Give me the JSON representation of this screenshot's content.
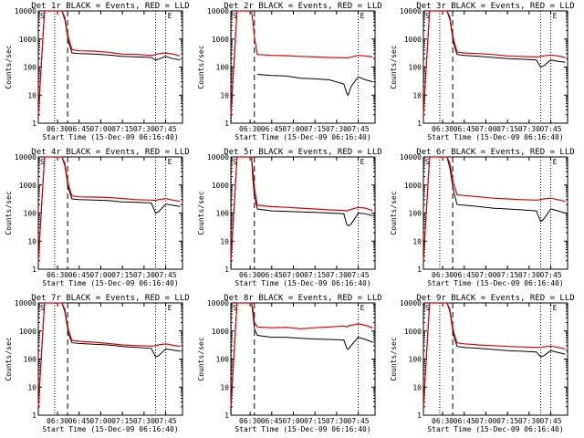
{
  "figure": {
    "ylabel": "Counts/sec",
    "xlabel": "Start Time (15-Dec-09 06:16:40)",
    "xticks": [
      "06:30",
      "06:45",
      "07:00",
      "07:15",
      "07:30",
      "07:45"
    ],
    "yticks": [
      "1",
      "10",
      "100",
      "1000",
      "10000"
    ],
    "colors": {
      "events": "#000000",
      "lld": "#e00000"
    }
  },
  "chart_data": [
    {
      "type": "line",
      "title": "Det 1r BLACK = Events, RED = LLD",
      "corner_labels": [
        "S",
        "E"
      ],
      "x": [
        "06:16:40",
        "06:21",
        "06:25",
        "06:29",
        "06:33",
        "06:35",
        "06:37",
        "06:38",
        "06:40",
        "06:45",
        "06:55",
        "07:05",
        "07:15",
        "07:25",
        "07:35",
        "07:38",
        "07:40",
        "07:45",
        "07:50",
        "07:55"
      ],
      "series": [
        {
          "name": "BLACK = Events",
          "values": [
            2,
            10000,
            10000,
            10000,
            10000,
            5000,
            1200,
            700,
            320,
            300,
            290,
            270,
            240,
            230,
            220,
            180,
            190,
            240,
            200,
            180
          ]
        },
        {
          "name": "RED = LLD",
          "values": [
            2,
            10000,
            10000,
            10000,
            10000,
            6000,
            1500,
            900,
            420,
            380,
            370,
            340,
            290,
            280,
            260,
            280,
            300,
            320,
            290,
            250
          ]
        }
      ],
      "markers": {
        "dotted": [
          "06:28",
          "07:38",
          "07:45"
        ],
        "dashed": [
          "06:37"
        ]
      },
      "ylim": [
        1,
        10000
      ],
      "yscale": "log"
    },
    {
      "type": "line",
      "title": "Det 2r BLACK = Events, RED = LLD",
      "corner_labels": [
        "S",
        "E"
      ],
      "x": [
        "06:16:40",
        "06:21",
        "06:25",
        "06:29",
        "06:31",
        "06:32",
        "06:33",
        "06:35",
        "06:45",
        "06:55",
        "07:05",
        "07:15",
        "07:25",
        "07:35",
        "07:37",
        "07:38",
        "07:40",
        "07:45",
        "07:50",
        "07:55"
      ],
      "series": [
        {
          "name": "BLACK = Events",
          "values": [
            2,
            10000,
            10000,
            10000,
            null,
            null,
            null,
            55,
            50,
            48,
            40,
            38,
            35,
            25,
            12,
            10,
            20,
            45,
            35,
            30
          ]
        },
        {
          "name": "RED = LLD",
          "values": [
            2,
            10000,
            10000,
            10000,
            10000,
            4000,
            1200,
            280,
            260,
            255,
            240,
            230,
            220,
            215,
            210,
            215,
            230,
            260,
            250,
            230
          ]
        }
      ],
      "markers": {
        "dotted": [
          "06:17",
          "07:45"
        ],
        "dashed": [
          "06:33"
        ]
      },
      "ylim": [
        1,
        10000
      ],
      "yscale": "log"
    },
    {
      "type": "line",
      "title": "Det 3r BLACK = Events, RED = LLD",
      "corner_labels": [
        "S",
        "E"
      ],
      "x": [
        "06:16:40",
        "06:21",
        "06:25",
        "06:29",
        "06:33",
        "06:35",
        "06:37",
        "06:38",
        "06:40",
        "06:45",
        "06:55",
        "07:05",
        "07:15",
        "07:25",
        "07:35",
        "07:38",
        "07:40",
        "07:45",
        "07:50",
        "07:55"
      ],
      "series": [
        {
          "name": "BLACK = Events",
          "values": [
            2,
            10000,
            10000,
            10000,
            10000,
            5000,
            1100,
            600,
            280,
            260,
            240,
            220,
            200,
            190,
            180,
            100,
            110,
            180,
            160,
            150
          ]
        },
        {
          "name": "RED = LLD",
          "values": [
            2,
            10000,
            10000,
            10000,
            10000,
            6000,
            1400,
            800,
            340,
            320,
            300,
            280,
            250,
            240,
            230,
            240,
            250,
            270,
            250,
            220
          ]
        }
      ],
      "markers": {
        "dotted": [
          "06:28",
          "07:38",
          "07:45"
        ],
        "dashed": [
          "06:37"
        ]
      },
      "ylim": [
        1,
        10000
      ],
      "yscale": "log"
    },
    {
      "type": "line",
      "title": "Det 4r BLACK = Events, RED = LLD",
      "corner_labels": [
        "S",
        "E"
      ],
      "x": [
        "06:16:40",
        "06:21",
        "06:25",
        "06:29",
        "06:33",
        "06:35",
        "06:37",
        "06:38",
        "06:40",
        "06:45",
        "06:55",
        "07:05",
        "07:15",
        "07:25",
        "07:35",
        "07:38",
        "07:40",
        "07:45",
        "07:50",
        "07:55"
      ],
      "series": [
        {
          "name": "BLACK = Events",
          "values": [
            2,
            10000,
            10000,
            10000,
            10000,
            5000,
            1100,
            650,
            320,
            300,
            290,
            280,
            250,
            240,
            230,
            100,
            110,
            210,
            190,
            170
          ]
        },
        {
          "name": "RED = LLD",
          "values": [
            2,
            10000,
            10000,
            10000,
            10000,
            6000,
            1400,
            850,
            410,
            380,
            370,
            360,
            330,
            300,
            290,
            280,
            300,
            330,
            290,
            260
          ]
        }
      ],
      "markers": {
        "dotted": [
          "06:28",
          "07:38",
          "07:45"
        ],
        "dashed": [
          "06:37"
        ]
      },
      "ylim": [
        1,
        10000
      ],
      "yscale": "log"
    },
    {
      "type": "line",
      "title": "Det 5r BLACK = Events, RED = LLD",
      "corner_labels": [
        "S",
        "E"
      ],
      "x": [
        "06:16:40",
        "06:21",
        "06:25",
        "06:29",
        "06:31",
        "06:32",
        "06:33",
        "06:35",
        "06:45",
        "06:55",
        "07:05",
        "07:15",
        "07:25",
        "07:35",
        "07:37",
        "07:38",
        "07:40",
        "07:45",
        "07:50",
        "07:55"
      ],
      "series": [
        {
          "name": "BLACK = Events",
          "values": [
            2,
            10000,
            10000,
            10000,
            10000,
            1500,
            400,
            140,
            120,
            115,
            110,
            105,
            100,
            95,
            40,
            35,
            40,
            100,
            95,
            80
          ]
        },
        {
          "name": "RED = LLD",
          "values": [
            2,
            10000,
            10000,
            10000,
            10000,
            3000,
            800,
            190,
            170,
            160,
            150,
            140,
            130,
            125,
            120,
            125,
            135,
            160,
            150,
            120
          ]
        }
      ],
      "markers": {
        "dotted": [
          "06:17",
          "07:45"
        ],
        "dashed": [
          "06:33"
        ]
      },
      "ylim": [
        1,
        10000
      ],
      "yscale": "log"
    },
    {
      "type": "line",
      "title": "Det 6r BLACK = Events, RED = LLD",
      "corner_labels": [
        "S",
        "E"
      ],
      "x": [
        "06:16:40",
        "06:21",
        "06:25",
        "06:29",
        "06:33",
        "06:35",
        "06:37",
        "06:38",
        "06:40",
        "06:45",
        "06:55",
        "07:05",
        "07:15",
        "07:25",
        "07:35",
        "07:38",
        "07:40",
        "07:45",
        "07:50",
        "07:55"
      ],
      "series": [
        {
          "name": "BLACK = Events",
          "values": [
            2,
            10000,
            10000,
            10000,
            10000,
            4000,
            900,
            500,
            200,
            190,
            170,
            150,
            140,
            130,
            120,
            50,
            60,
            140,
            120,
            100
          ]
        },
        {
          "name": "RED = LLD",
          "values": [
            2,
            10000,
            10000,
            10000,
            10000,
            6000,
            1600,
            1000,
            450,
            420,
            380,
            340,
            320,
            300,
            290,
            300,
            320,
            340,
            300,
            260
          ]
        }
      ],
      "markers": {
        "dotted": [
          "06:28",
          "07:38",
          "07:45"
        ],
        "dashed": [
          "06:37"
        ]
      },
      "ylim": [
        1,
        10000
      ],
      "yscale": "log"
    },
    {
      "type": "line",
      "title": "Det 7r BLACK = Events, RED = LLD",
      "corner_labels": [
        "S",
        "E"
      ],
      "x": [
        "06:16:40",
        "06:21",
        "06:25",
        "06:29",
        "06:33",
        "06:35",
        "06:37",
        "06:38",
        "06:40",
        "06:45",
        "06:55",
        "07:05",
        "07:15",
        "07:25",
        "07:35",
        "07:38",
        "07:40",
        "07:45",
        "07:50",
        "07:55"
      ],
      "series": [
        {
          "name": "BLACK = Events",
          "values": [
            2,
            10000,
            10000,
            10000,
            10000,
            5000,
            1200,
            700,
            380,
            360,
            340,
            320,
            280,
            260,
            240,
            120,
            130,
            230,
            210,
            190
          ]
        },
        {
          "name": "RED = LLD",
          "values": [
            2,
            10000,
            10000,
            10000,
            10000,
            6000,
            1500,
            900,
            460,
            430,
            400,
            360,
            320,
            300,
            290,
            300,
            320,
            350,
            310,
            280
          ]
        }
      ],
      "markers": {
        "dotted": [
          "06:28",
          "07:38",
          "07:45"
        ],
        "dashed": [
          "06:37"
        ]
      },
      "ylim": [
        1,
        10000
      ],
      "yscale": "log"
    },
    {
      "type": "line",
      "title": "Det 8r BLACK = Events, RED = LLD",
      "corner_labels": [
        "S",
        "E"
      ],
      "x": [
        "06:16:40",
        "06:21",
        "06:25",
        "06:29",
        "06:31",
        "06:32",
        "06:33",
        "06:35",
        "06:45",
        "06:55",
        "07:05",
        "07:15",
        "07:25",
        "07:35",
        "07:37",
        "07:38",
        "07:40",
        "07:45",
        "07:50",
        "07:55"
      ],
      "series": [
        {
          "name": "BLACK = Events",
          "values": [
            2,
            10000,
            10000,
            10000,
            10000,
            4000,
            1200,
            700,
            600,
            600,
            550,
            520,
            500,
            480,
            250,
            220,
            300,
            600,
            500,
            400
          ]
        },
        {
          "name": "RED = LLD",
          "values": [
            2,
            10000,
            10000,
            10000,
            10000,
            6000,
            2000,
            1400,
            1300,
            1350,
            1200,
            1300,
            1400,
            1500,
            1400,
            1500,
            1600,
            1800,
            1600,
            1300
          ]
        }
      ],
      "markers": {
        "dotted": [
          "06:17",
          "07:45"
        ],
        "dashed": [
          "06:33"
        ]
      },
      "ylim": [
        1,
        10000
      ],
      "yscale": "log"
    },
    {
      "type": "line",
      "title": "Det 9r BLACK = Events, RED = LLD",
      "corner_labels": [
        "S",
        "E"
      ],
      "x": [
        "06:16:40",
        "06:21",
        "06:25",
        "06:29",
        "06:33",
        "06:35",
        "06:37",
        "06:38",
        "06:40",
        "06:45",
        "06:55",
        "07:05",
        "07:15",
        "07:25",
        "07:35",
        "07:38",
        "07:40",
        "07:45",
        "07:50",
        "07:55"
      ],
      "series": [
        {
          "name": "BLACK = Events",
          "values": [
            2,
            10000,
            10000,
            10000,
            10000,
            5000,
            1100,
            600,
            280,
            260,
            240,
            220,
            200,
            190,
            180,
            120,
            130,
            200,
            170,
            150
          ]
        },
        {
          "name": "RED = LLD",
          "values": [
            2,
            10000,
            10000,
            10000,
            10000,
            6000,
            1400,
            800,
            380,
            350,
            320,
            300,
            280,
            270,
            260,
            260,
            270,
            290,
            260,
            230
          ]
        }
      ],
      "markers": {
        "dotted": [
          "06:28",
          "07:38",
          "07:45"
        ],
        "dashed": [
          "06:37"
        ]
      },
      "ylim": [
        1,
        10000
      ],
      "yscale": "log"
    }
  ]
}
